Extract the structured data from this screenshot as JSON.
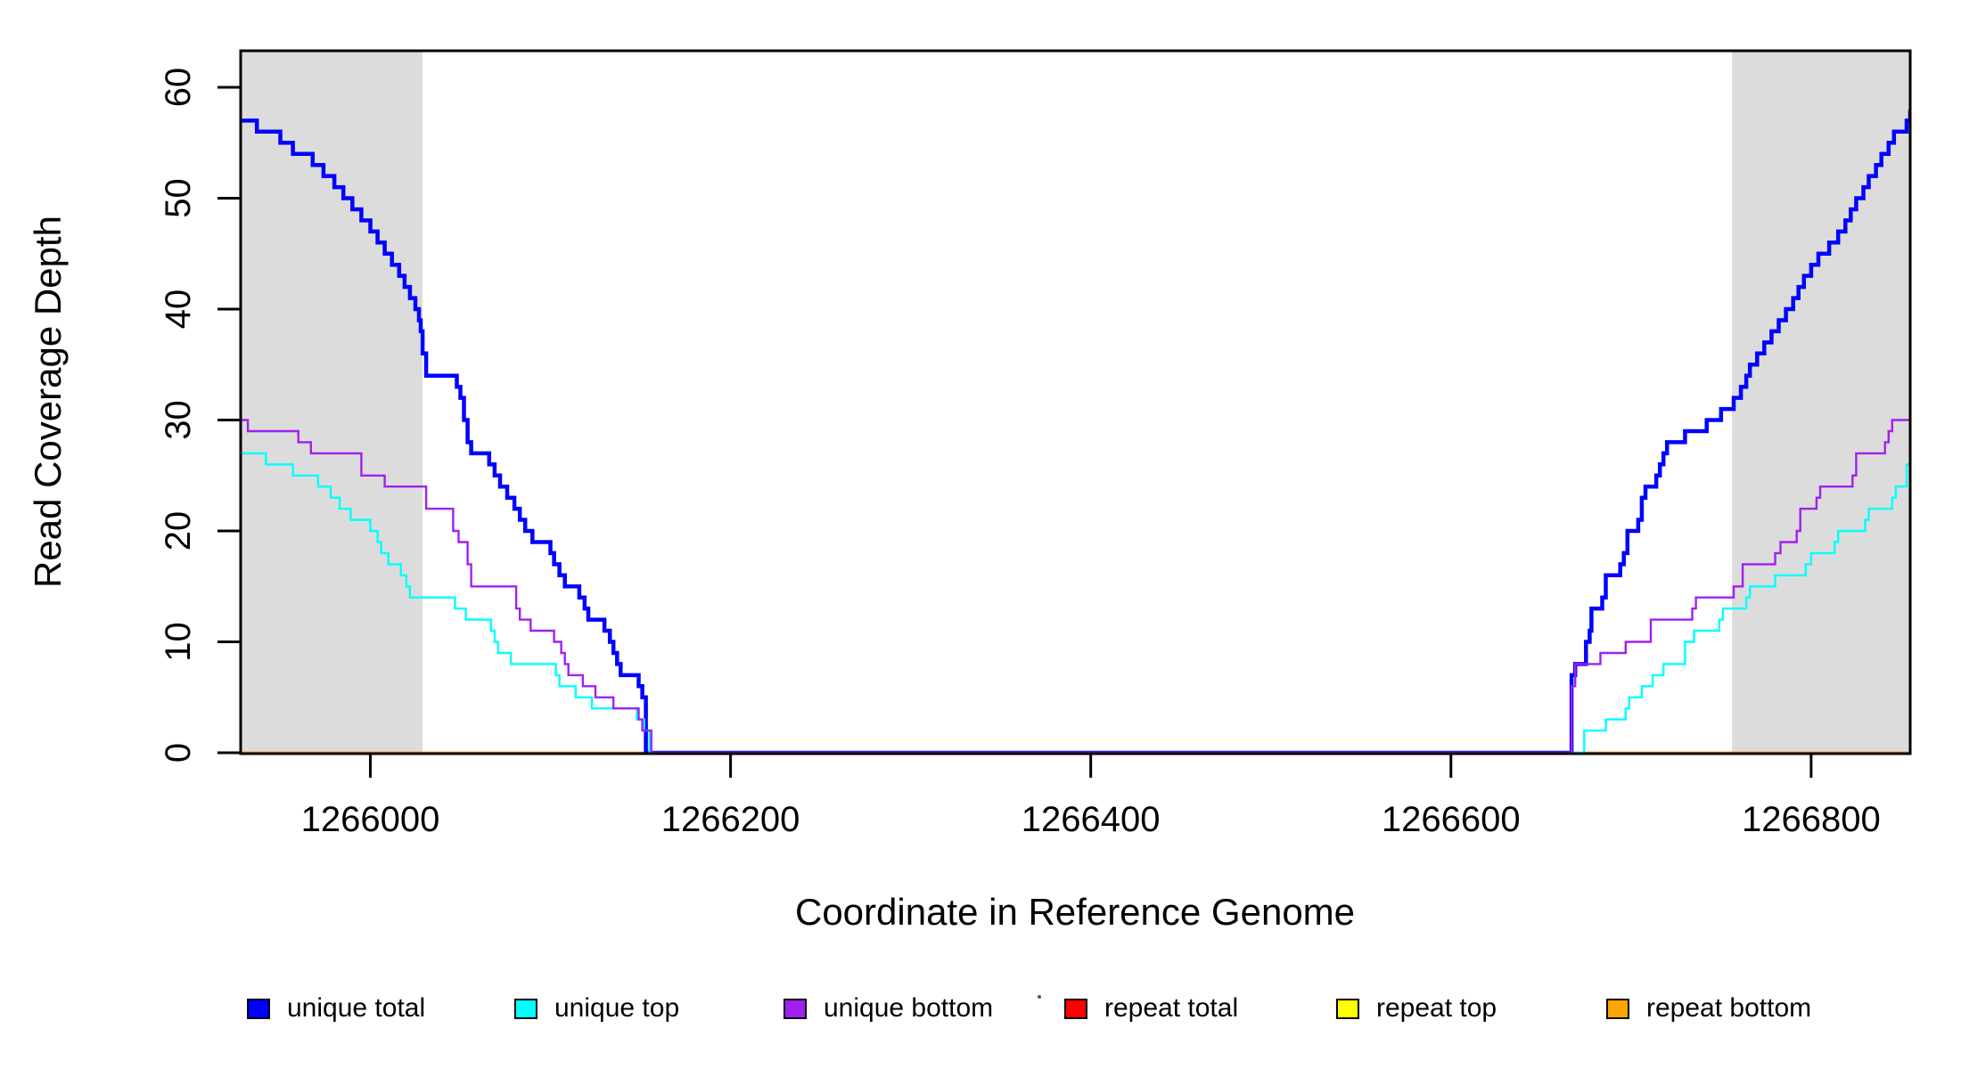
{
  "chart_data": {
    "type": "line",
    "subtype": "step-coverage",
    "title": "",
    "xlabel": "Coordinate in Reference Genome",
    "ylabel": "Read Coverage Depth",
    "xlim": [
      1265928,
      1266855
    ],
    "ylim": [
      0,
      63.3
    ],
    "grid": false,
    "legend_position": "bottom",
    "x_ticks": [
      "1266000",
      "1266200",
      "1266400",
      "1266600",
      "1266800"
    ],
    "x_tick_values": [
      1266000,
      1266200,
      1266400,
      1266600,
      1266800
    ],
    "y_ticks": [
      "0",
      "10",
      "20",
      "30",
      "40",
      "50",
      "60"
    ],
    "y_tick_values": [
      0,
      10,
      20,
      30,
      40,
      50,
      60
    ],
    "shaded_regions": [
      {
        "x0": 1265928,
        "x1": 1266029,
        "color": "#DCDCDC"
      },
      {
        "x0": 1266756,
        "x1": 1266855,
        "color": "#DCDCDC"
      }
    ],
    "series": [
      {
        "name": "repeat total",
        "color": "#FF0000",
        "line_width": 2.2,
        "steps": [
          [
            1265928,
            0
          ],
          [
            1266855,
            0
          ]
        ]
      },
      {
        "name": "repeat top",
        "color": "#FFFF00",
        "line_width": 2.2,
        "steps": [
          [
            1265928,
            0
          ],
          [
            1266855,
            0
          ]
        ]
      },
      {
        "name": "repeat bottom",
        "color": "#FFA500",
        "line_width": 2.6,
        "steps": [
          [
            1265928,
            0
          ],
          [
            1266855,
            0
          ]
        ]
      },
      {
        "name": "unique total",
        "color": "#0000FF",
        "line_width": 4.5,
        "steps": [
          [
            1265928,
            57
          ],
          [
            1265937,
            56
          ],
          [
            1265950,
            55
          ],
          [
            1265957,
            54
          ],
          [
            1265968,
            53
          ],
          [
            1265974,
            52
          ],
          [
            1265980,
            51
          ],
          [
            1265985,
            50
          ],
          [
            1265990,
            49
          ],
          [
            1265995,
            48
          ],
          [
            1266000,
            47
          ],
          [
            1266004,
            46
          ],
          [
            1266008,
            45
          ],
          [
            1266012,
            44
          ],
          [
            1266016,
            43
          ],
          [
            1266019,
            42
          ],
          [
            1266022,
            41
          ],
          [
            1266025,
            40
          ],
          [
            1266027,
            39
          ],
          [
            1266028,
            38
          ],
          [
            1266029,
            36
          ],
          [
            1266031,
            34
          ],
          [
            1266048,
            33
          ],
          [
            1266050,
            32
          ],
          [
            1266052,
            30
          ],
          [
            1266054,
            28
          ],
          [
            1266056,
            27
          ],
          [
            1266066,
            26
          ],
          [
            1266069,
            25
          ],
          [
            1266072,
            24
          ],
          [
            1266076,
            23
          ],
          [
            1266080,
            22
          ],
          [
            1266083,
            21
          ],
          [
            1266086,
            20
          ],
          [
            1266090,
            19
          ],
          [
            1266100,
            18
          ],
          [
            1266102,
            17
          ],
          [
            1266105,
            16
          ],
          [
            1266108,
            15
          ],
          [
            1266116,
            14
          ],
          [
            1266119,
            13
          ],
          [
            1266121,
            12
          ],
          [
            1266130,
            11
          ],
          [
            1266133,
            10
          ],
          [
            1266135,
            9
          ],
          [
            1266137,
            8
          ],
          [
            1266139,
            7
          ],
          [
            1266149,
            6
          ],
          [
            1266151,
            5
          ],
          [
            1266153,
            0
          ],
          [
            1266667,
            7
          ],
          [
            1266669,
            8
          ],
          [
            1266675,
            10
          ],
          [
            1266677,
            11
          ],
          [
            1266678,
            13
          ],
          [
            1266684,
            14
          ],
          [
            1266686,
            16
          ],
          [
            1266694,
            17
          ],
          [
            1266696,
            18
          ],
          [
            1266698,
            20
          ],
          [
            1266704,
            21
          ],
          [
            1266706,
            23
          ],
          [
            1266708,
            24
          ],
          [
            1266714,
            25
          ],
          [
            1266716,
            26
          ],
          [
            1266718,
            27
          ],
          [
            1266720,
            28
          ],
          [
            1266730,
            29
          ],
          [
            1266742,
            30
          ],
          [
            1266750,
            31
          ],
          [
            1266757,
            32
          ],
          [
            1266761,
            33
          ],
          [
            1266764,
            34
          ],
          [
            1266766,
            35
          ],
          [
            1266770,
            36
          ],
          [
            1266774,
            37
          ],
          [
            1266778,
            38
          ],
          [
            1266782,
            39
          ],
          [
            1266786,
            40
          ],
          [
            1266790,
            41
          ],
          [
            1266793,
            42
          ],
          [
            1266796,
            43
          ],
          [
            1266800,
            44
          ],
          [
            1266804,
            45
          ],
          [
            1266810,
            46
          ],
          [
            1266815,
            47
          ],
          [
            1266819,
            48
          ],
          [
            1266822,
            49
          ],
          [
            1266825,
            50
          ],
          [
            1266829,
            51
          ],
          [
            1266832,
            52
          ],
          [
            1266836,
            53
          ],
          [
            1266839,
            54
          ],
          [
            1266843,
            55
          ],
          [
            1266846,
            56
          ],
          [
            1266853,
            57
          ],
          [
            1266855,
            58
          ]
        ]
      },
      {
        "name": "unique top",
        "color": "#00FFFF",
        "line_width": 2.4,
        "steps": [
          [
            1265928,
            27
          ],
          [
            1265942,
            26
          ],
          [
            1265957,
            25
          ],
          [
            1265971,
            24
          ],
          [
            1265978,
            23
          ],
          [
            1265983,
            22
          ],
          [
            1265989,
            21
          ],
          [
            1266000,
            20
          ],
          [
            1266004,
            19
          ],
          [
            1266006,
            18
          ],
          [
            1266010,
            17
          ],
          [
            1266017,
            16
          ],
          [
            1266020,
            15
          ],
          [
            1266022,
            14
          ],
          [
            1266047,
            13
          ],
          [
            1266053,
            12
          ],
          [
            1266067,
            11
          ],
          [
            1266069,
            10
          ],
          [
            1266071,
            9
          ],
          [
            1266078,
            8
          ],
          [
            1266103,
            7
          ],
          [
            1266105,
            6
          ],
          [
            1266114,
            5
          ],
          [
            1266123,
            4
          ],
          [
            1266148,
            3
          ],
          [
            1266152,
            2
          ],
          [
            1266155,
            0
          ],
          [
            1266674,
            2
          ],
          [
            1266686,
            3
          ],
          [
            1266697,
            4
          ],
          [
            1266699,
            5
          ],
          [
            1266706,
            6
          ],
          [
            1266712,
            7
          ],
          [
            1266718,
            8
          ],
          [
            1266730,
            10
          ],
          [
            1266735,
            11
          ],
          [
            1266749,
            12
          ],
          [
            1266751,
            13
          ],
          [
            1266764,
            14
          ],
          [
            1266766,
            15
          ],
          [
            1266780,
            16
          ],
          [
            1266797,
            17
          ],
          [
            1266800,
            18
          ],
          [
            1266813,
            19
          ],
          [
            1266815,
            20
          ],
          [
            1266830,
            21
          ],
          [
            1266832,
            22
          ],
          [
            1266845,
            23
          ],
          [
            1266847,
            24
          ],
          [
            1266853,
            26
          ],
          [
            1266855,
            28
          ]
        ]
      },
      {
        "name": "unique bottom",
        "color": "#A020F0",
        "line_width": 2.4,
        "steps": [
          [
            1265928,
            30
          ],
          [
            1265932,
            29
          ],
          [
            1265960,
            28
          ],
          [
            1265967,
            27
          ],
          [
            1265995,
            25
          ],
          [
            1266008,
            24
          ],
          [
            1266031,
            22
          ],
          [
            1266046,
            20
          ],
          [
            1266049,
            19
          ],
          [
            1266054,
            17
          ],
          [
            1266056,
            15
          ],
          [
            1266081,
            13
          ],
          [
            1266083,
            12
          ],
          [
            1266089,
            11
          ],
          [
            1266102,
            10
          ],
          [
            1266106,
            9
          ],
          [
            1266108,
            8
          ],
          [
            1266110,
            7
          ],
          [
            1266118,
            6
          ],
          [
            1266125,
            5
          ],
          [
            1266135,
            4
          ],
          [
            1266149,
            3
          ],
          [
            1266151,
            2
          ],
          [
            1266156,
            0
          ],
          [
            1266667,
            6
          ],
          [
            1266669,
            8
          ],
          [
            1266683,
            9
          ],
          [
            1266697,
            10
          ],
          [
            1266711,
            12
          ],
          [
            1266734,
            13
          ],
          [
            1266736,
            14
          ],
          [
            1266757,
            15
          ],
          [
            1266762,
            17
          ],
          [
            1266780,
            18
          ],
          [
            1266783,
            19
          ],
          [
            1266792,
            20
          ],
          [
            1266794,
            22
          ],
          [
            1266803,
            23
          ],
          [
            1266805,
            24
          ],
          [
            1266823,
            25
          ],
          [
            1266825,
            27
          ],
          [
            1266841,
            28
          ],
          [
            1266843,
            29
          ],
          [
            1266845,
            30
          ],
          [
            1266855,
            30
          ]
        ]
      }
    ],
    "legend": [
      {
        "label": "unique total",
        "color": "#0000FF"
      },
      {
        "label": "unique top",
        "color": "#00FFFF"
      },
      {
        "label": "unique bottom",
        "color": "#A020F0"
      },
      {
        "label": "repeat total",
        "color": "#FF0000"
      },
      {
        "label": "repeat top",
        "color": "#FFFF00"
      },
      {
        "label": "repeat bottom",
        "color": "#FFA500"
      }
    ]
  }
}
